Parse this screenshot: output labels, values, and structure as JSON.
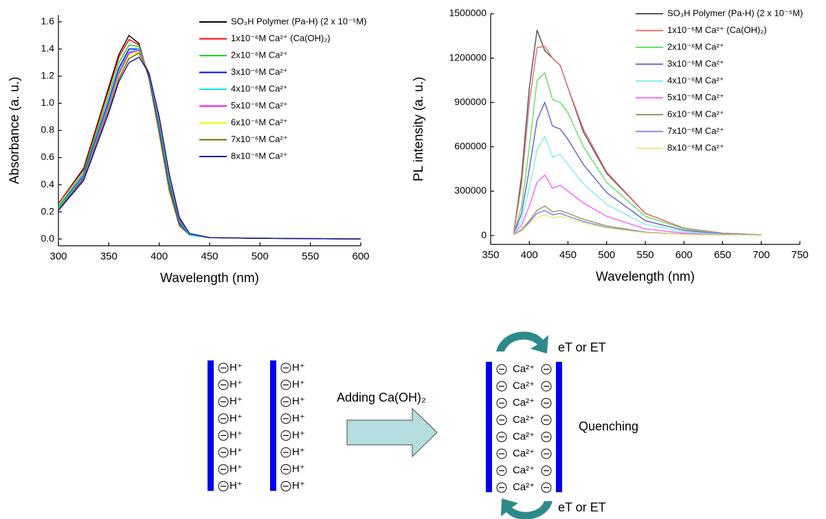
{
  "chart_data": [
    {
      "type": "line",
      "x_label": "Wavelength (nm)",
      "y_label": "Absorbance (a. u.)",
      "x": [
        300,
        325,
        350,
        360,
        370,
        380,
        390,
        400,
        410,
        420,
        430,
        450,
        500,
        600
      ],
      "xlim": [
        300,
        600
      ],
      "xticks": [
        300,
        350,
        400,
        450,
        500,
        550,
        600
      ],
      "ylim": [
        -0.05,
        1.65
      ],
      "yticks": [
        {
          "value": 0,
          "label": "0.0"
        },
        0.2,
        0.4,
        0.6,
        0.8,
        {
          "value": 1,
          "label": "1.0"
        },
        1.2,
        1.4,
        1.6
      ],
      "legend": "upper right",
      "series": [
        {
          "name": "SO₃H Polymer (Pa-H) (2 x 10⁻⁵M)",
          "color": "#000000",
          "values": [
            0.26,
            0.52,
            1.12,
            1.36,
            1.5,
            1.44,
            1.18,
            0.78,
            0.36,
            0.1,
            0.03,
            0.01,
            0.005,
            0
          ]
        },
        {
          "name": "1x10⁻⁶M Ca²⁺ (Ca(OH)₂)",
          "color": "#ff0000",
          "values": [
            0.26,
            0.51,
            1.1,
            1.34,
            1.47,
            1.43,
            1.18,
            0.78,
            0.36,
            0.1,
            0.03,
            0.01,
            0.005,
            0
          ]
        },
        {
          "name": "2x10⁻⁶M Ca²⁺",
          "color": "#00dd00",
          "values": [
            0.24,
            0.49,
            1.06,
            1.3,
            1.43,
            1.42,
            1.19,
            0.8,
            0.38,
            0.11,
            0.03,
            0.01,
            0.005,
            0
          ]
        },
        {
          "name": "3x10⁻⁶M Ca²⁺",
          "color": "#0000ff",
          "values": [
            0.23,
            0.47,
            1.02,
            1.26,
            1.4,
            1.4,
            1.2,
            0.83,
            0.41,
            0.12,
            0.03,
            0.01,
            0.005,
            0
          ]
        },
        {
          "name": "4x10⁻⁶M Ca²⁺",
          "color": "#00e5e5",
          "values": [
            0.23,
            0.46,
            1.0,
            1.24,
            1.38,
            1.4,
            1.21,
            0.85,
            0.43,
            0.13,
            0.03,
            0.01,
            0.005,
            0
          ]
        },
        {
          "name": "5x10⁻⁶M Ca²⁺",
          "color": "#ff00ff",
          "values": [
            0.22,
            0.45,
            0.98,
            1.22,
            1.37,
            1.39,
            1.22,
            0.87,
            0.45,
            0.14,
            0.04,
            0.01,
            0.005,
            0
          ]
        },
        {
          "name": "6x10⁻⁶M Ca²⁺",
          "color": "#f5f500",
          "values": [
            0.22,
            0.44,
            0.96,
            1.2,
            1.35,
            1.38,
            1.22,
            0.88,
            0.46,
            0.15,
            0.04,
            0.01,
            0.005,
            0
          ]
        },
        {
          "name": "7x10⁻⁶M Ca²⁺",
          "color": "#6b6b00",
          "values": [
            0.22,
            0.44,
            0.95,
            1.18,
            1.33,
            1.37,
            1.22,
            0.89,
            0.47,
            0.15,
            0.04,
            0.01,
            0.005,
            0
          ]
        },
        {
          "name": "8x10⁻⁶M Ca²⁺",
          "color": "#1a1aa0",
          "values": [
            0.21,
            0.43,
            0.93,
            1.16,
            1.3,
            1.34,
            1.22,
            0.9,
            0.48,
            0.16,
            0.04,
            0.01,
            0.005,
            0
          ]
        }
      ]
    },
    {
      "type": "line",
      "x_label": "Wavelength (nm)",
      "y_label": "PL intensity (a. u.)",
      "x": [
        380,
        390,
        400,
        410,
        420,
        430,
        440,
        450,
        470,
        500,
        550,
        600,
        650,
        700
      ],
      "xlim": [
        350,
        750
      ],
      "xticks": [
        350,
        400,
        450,
        500,
        550,
        600,
        650,
        700,
        750
      ],
      "ylim": [
        -60000,
        1500000
      ],
      "yticks": [
        0,
        300000,
        600000,
        900000,
        1200000,
        1500000
      ],
      "legend": "upper right",
      "series": [
        {
          "name": "SO₃H Polymer (Pa-H) (2 x 10⁻⁵M)",
          "color": "#555555",
          "values": [
            20000,
            400000,
            1000000,
            1390000,
            1250000,
            1200000,
            1150000,
            1000000,
            700000,
            420000,
            150000,
            50000,
            15000,
            5000
          ]
        },
        {
          "name": "1x10⁻⁶M Ca²⁺ (Ca(OH)₂)",
          "color": "#e87070",
          "values": [
            20000,
            350000,
            900000,
            1270000,
            1280000,
            1200000,
            1150000,
            1000000,
            720000,
            430000,
            150000,
            50000,
            15000,
            5000
          ]
        },
        {
          "name": "2x10⁻⁶M Ca²⁺",
          "color": "#66e066",
          "values": [
            10000,
            200000,
            600000,
            1050000,
            1100000,
            920000,
            900000,
            830000,
            600000,
            360000,
            130000,
            45000,
            12000,
            4000
          ]
        },
        {
          "name": "3x10⁻⁶M Ca²⁺",
          "color": "#6666cc",
          "values": [
            10000,
            150000,
            450000,
            780000,
            900000,
            740000,
            720000,
            650000,
            480000,
            290000,
            100000,
            35000,
            10000,
            3000
          ]
        },
        {
          "name": "4x10⁻⁶M Ca²⁺",
          "color": "#88eeee",
          "values": [
            8000,
            110000,
            320000,
            580000,
            670000,
            530000,
            550000,
            480000,
            350000,
            210000,
            75000,
            25000,
            8000,
            2000
          ]
        },
        {
          "name": "5x10⁻⁶M Ca²⁺",
          "color": "#ff66ff",
          "values": [
            5000,
            70000,
            200000,
            360000,
            410000,
            320000,
            340000,
            300000,
            220000,
            130000,
            45000,
            15000,
            5000,
            1000
          ]
        },
        {
          "name": "6x10⁻⁶M Ca²⁺",
          "color": "#999966",
          "values": [
            3000,
            40000,
            100000,
            170000,
            200000,
            160000,
            170000,
            150000,
            110000,
            65000,
            22000,
            8000,
            3000,
            1000
          ]
        },
        {
          "name": "7x10⁻⁶M Ca²⁺",
          "color": "#8888dd",
          "values": [
            3000,
            35000,
            90000,
            150000,
            170000,
            140000,
            150000,
            130000,
            95000,
            55000,
            20000,
            7000,
            2000,
            1000
          ]
        },
        {
          "name": "8x10⁻⁶M Ca²⁺",
          "color": "#eeee88",
          "values": [
            2000,
            30000,
            80000,
            120000,
            140000,
            120000,
            130000,
            115000,
            85000,
            50000,
            18000,
            6000,
            2000,
            1000
          ]
        }
      ]
    }
  ],
  "diagram": {
    "left_column": [
      "H⁺",
      "H⁺",
      "H⁺",
      "H⁺",
      "H⁺",
      "H⁺",
      "H⁺",
      "H⁺"
    ],
    "right_column": [
      "H⁺",
      "H⁺",
      "H⁺",
      "H⁺",
      "H⁺",
      "H⁺",
      "H⁺",
      "H⁺"
    ],
    "process_label": "Adding Ca(OH)₂",
    "complex_column": [
      "Ca²⁺",
      "Ca²⁺",
      "Ca²⁺",
      "Ca²⁺",
      "Ca²⁺",
      "Ca²⁺",
      "Ca²⁺",
      "Ca²⁺"
    ],
    "top_transfer": "eT or ET",
    "bottom_transfer": "eT or ET",
    "result_label": "Quenching"
  }
}
